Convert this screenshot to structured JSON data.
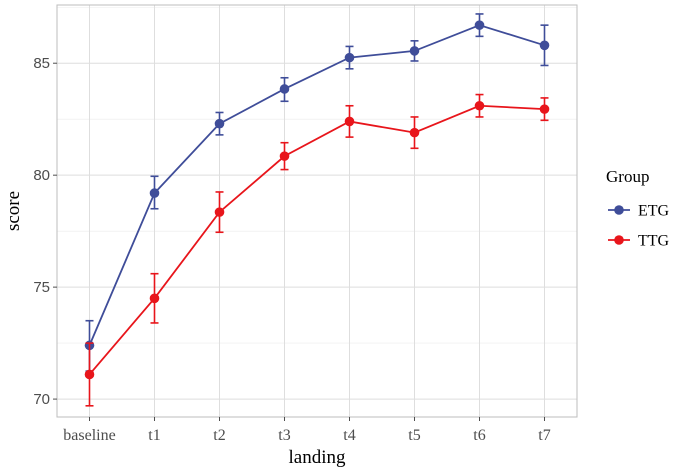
{
  "chart_data": {
    "type": "line",
    "categories": [
      "baseline",
      "t1",
      "t2",
      "t3",
      "t4",
      "t5",
      "t6",
      "t7"
    ],
    "xlabel": "landing",
    "ylabel": "score",
    "ylim": [
      69.2,
      87.6
    ],
    "yticks": [
      70,
      75,
      80,
      85
    ],
    "grid": true,
    "legend": {
      "title": "Group",
      "position": "right"
    },
    "series": [
      {
        "name": "ETG",
        "color": "#3f4d99",
        "values": [
          72.4,
          79.2,
          82.3,
          83.85,
          85.25,
          85.55,
          86.7,
          85.8
        ],
        "error_low": [
          71.25,
          78.5,
          81.8,
          83.3,
          84.75,
          85.1,
          86.2,
          84.9
        ],
        "error_high": [
          73.5,
          79.95,
          82.8,
          84.35,
          85.75,
          86.0,
          87.2,
          86.7
        ]
      },
      {
        "name": "TTG",
        "color": "#e8151b",
        "values": [
          71.1,
          74.5,
          78.35,
          80.85,
          82.4,
          81.9,
          83.1,
          82.95
        ],
        "error_low": [
          69.7,
          73.4,
          77.45,
          80.25,
          81.7,
          81.2,
          82.6,
          82.45
        ],
        "error_high": [
          72.5,
          75.6,
          79.25,
          81.45,
          83.1,
          82.6,
          83.6,
          83.45
        ]
      }
    ]
  }
}
